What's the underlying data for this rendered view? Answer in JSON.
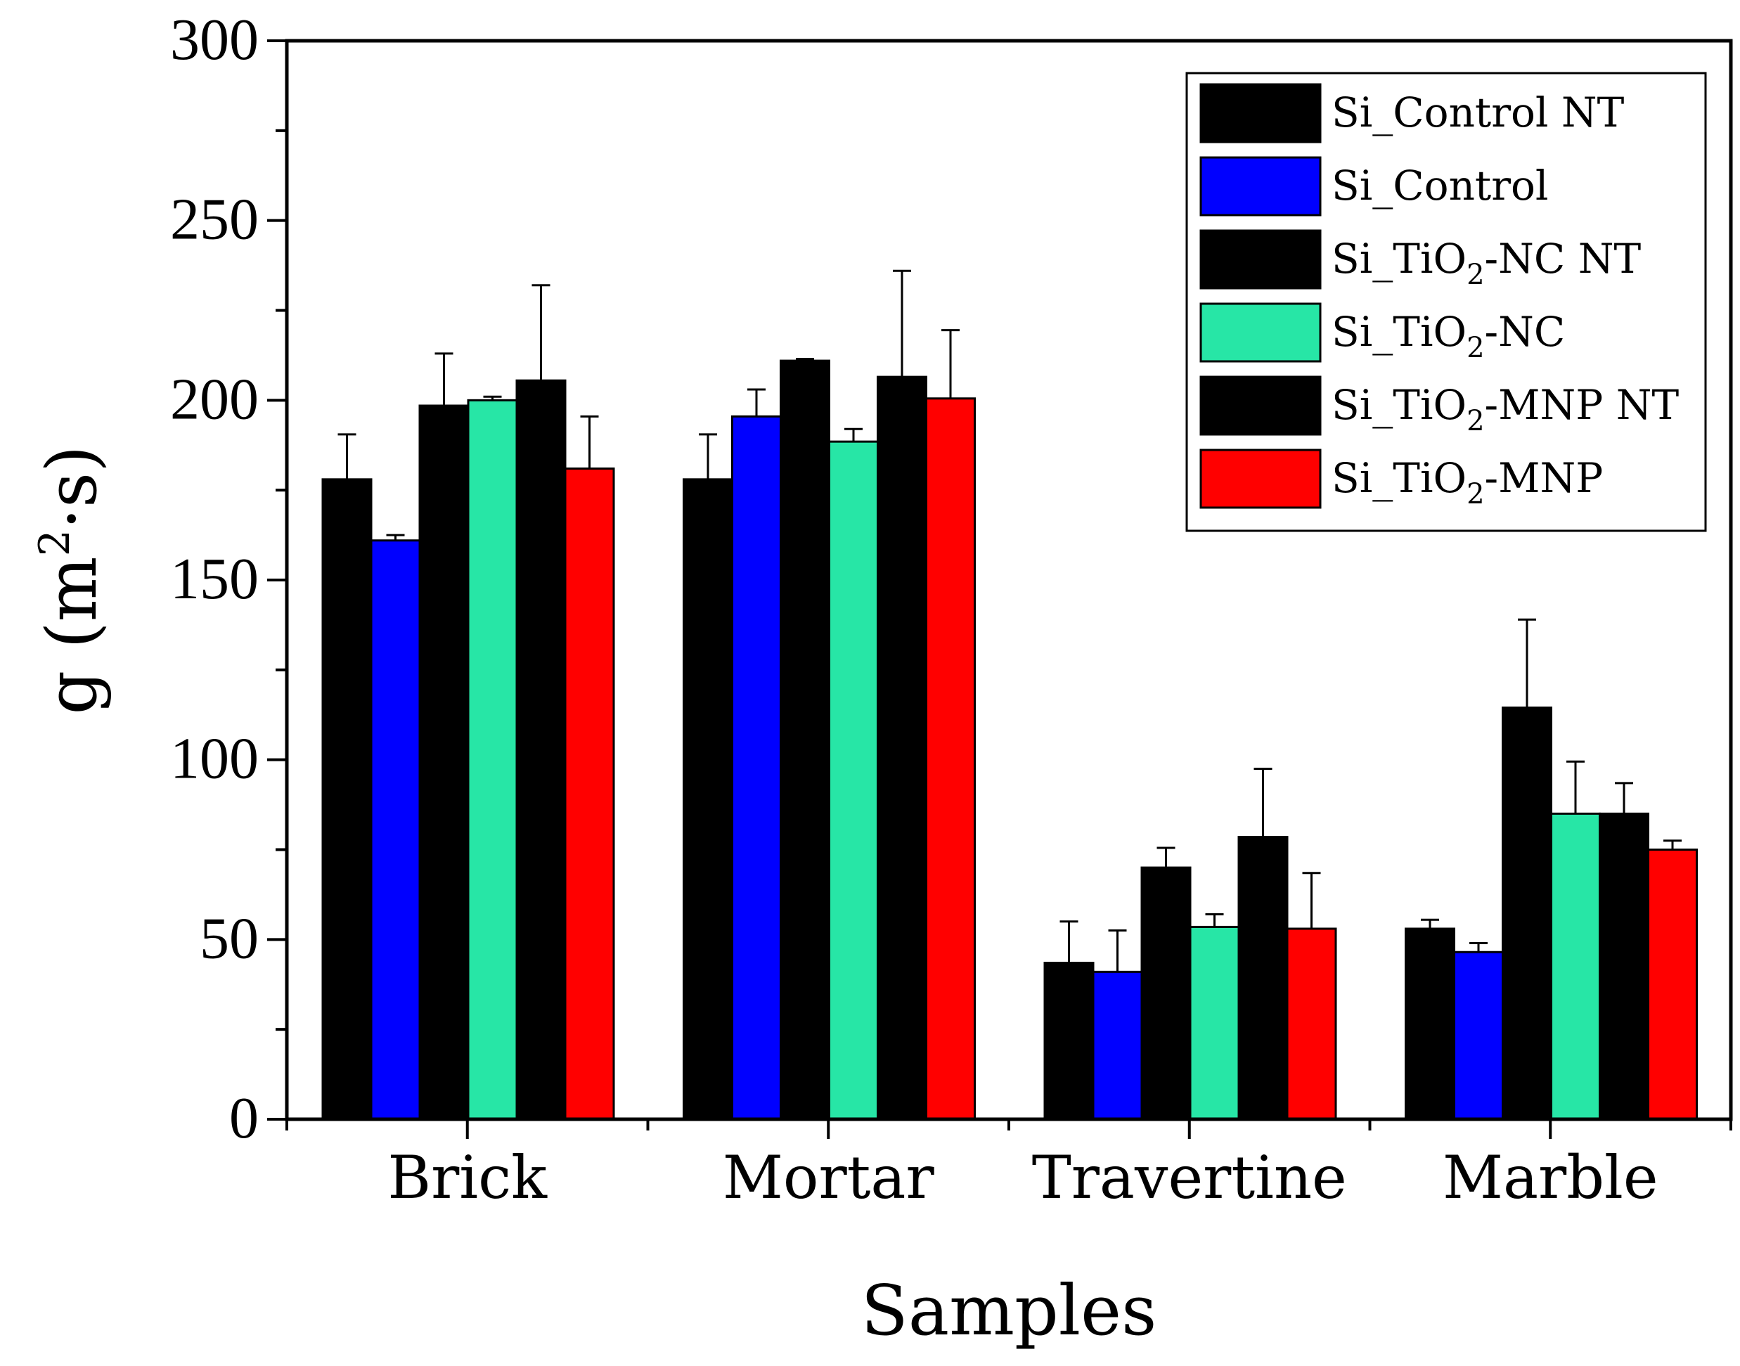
{
  "chart_data": {
    "type": "bar",
    "title": "",
    "xlabel": "Samples",
    "ylabel_main": "g (m",
    "ylabel_superscript": "2",
    "ylabel_tail": "·s)",
    "ylim": [
      0,
      300
    ],
    "yticks": [
      0,
      50,
      100,
      150,
      200,
      250,
      300
    ],
    "categories": [
      "Brick",
      "Mortar",
      "Travertine",
      "Marble"
    ],
    "legend_position": "top-right",
    "series": [
      {
        "name": "Si_Control NT",
        "label_base": "Si_Control NT",
        "label_sub": "",
        "label_tail": "",
        "color": "#000000",
        "values": [
          178,
          178,
          43.5,
          53
        ],
        "errors": [
          12.5,
          12.5,
          11.5,
          2.5
        ]
      },
      {
        "name": "Si_Control",
        "label_base": "Si_Control",
        "label_sub": "",
        "label_tail": "",
        "color": "#0000ff",
        "values": [
          161,
          195.5,
          41,
          46.5
        ],
        "errors": [
          1.5,
          7.5,
          11.5,
          2.5
        ]
      },
      {
        "name": "Si_TiO2-NC NT",
        "label_base": "Si_TiO",
        "label_sub": "2",
        "label_tail": "-NC NT",
        "color": "#000000",
        "values": [
          198.5,
          211,
          70,
          114.5
        ],
        "errors": [
          14.5,
          0.5,
          5.5,
          24.5
        ]
      },
      {
        "name": "Si_TiO2-NC",
        "label_base": "Si_TiO",
        "label_sub": "2",
        "label_tail": "-NC",
        "color": "#27e6a6",
        "values": [
          200,
          188.5,
          53.5,
          85
        ],
        "errors": [
          1,
          3.5,
          3.5,
          14.5
        ]
      },
      {
        "name": "Si_TiO2-MNP NT",
        "label_base": "Si_TiO",
        "label_sub": "2",
        "label_tail": "-MNP NT",
        "color": "#000000",
        "values": [
          205.5,
          206.5,
          78.5,
          85
        ],
        "errors": [
          26.5,
          29.5,
          19,
          8.5
        ]
      },
      {
        "name": "Si_TiO2-MNP",
        "label_base": "Si_TiO",
        "label_sub": "2",
        "label_tail": "-MNP",
        "color": "#ff0000",
        "values": [
          181,
          200.5,
          53,
          75
        ],
        "errors": [
          14.5,
          19,
          15.5,
          2.5
        ]
      }
    ]
  }
}
